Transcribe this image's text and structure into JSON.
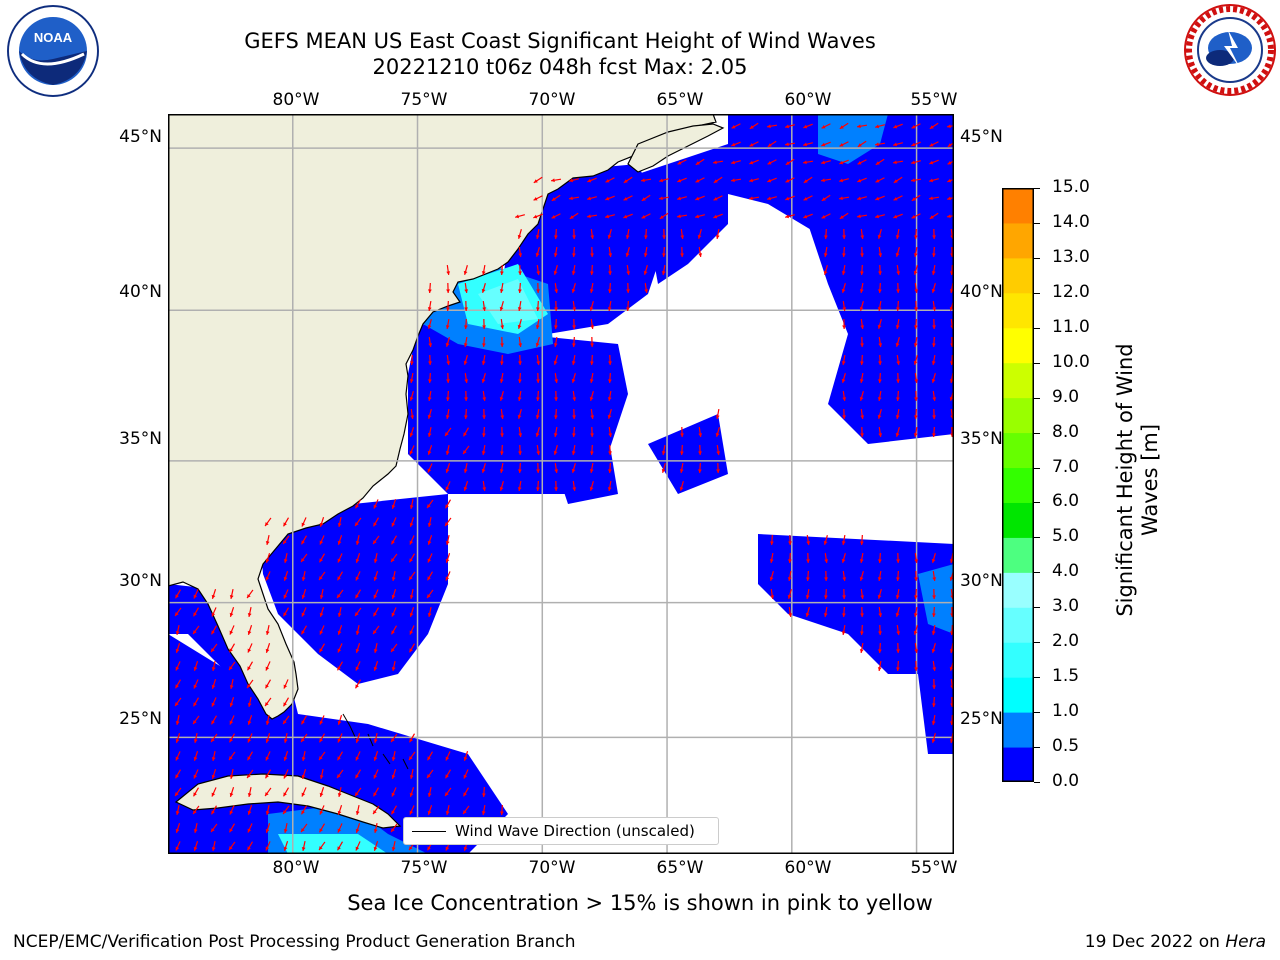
{
  "title_line1": "GEFS MEAN US East Coast Significant Height of Wind Waves",
  "title_line2": "20221210 t06z 048h fcst   Max: 2.05",
  "logos": {
    "left": "NOAA",
    "left_ring_text": "NATIONAL OCEANIC AND ATMOSPHERIC ADMINISTRATION · U.S. DEPARTMENT OF COMMERCE",
    "right_ring_text": "NATIONAL WEATHER SERVICE"
  },
  "lon_labels": [
    "80°W",
    "75°W",
    "70°W",
    "65°W",
    "60°W",
    "55°W"
  ],
  "lat_labels": [
    "45°N",
    "40°N",
    "35°N",
    "30°N",
    "25°N"
  ],
  "legend_text": "Wind Wave Direction (unscaled)",
  "note": "Sea Ice Concentration > 15% is shown in pink to yellow",
  "footer_left": "NCEP/EMC/Verification Post Processing Product Generation Branch",
  "footer_date": "19 Dec 2022 on ",
  "footer_machine": "Hera",
  "colorbar": {
    "label_line1": "Significant Height of Wind",
    "label_line2": "Waves [m]",
    "ticks": [
      "0.0",
      "0.5",
      "1.0",
      "1.5",
      "2.0",
      "3.0",
      "4.0",
      "5.0",
      "6.0",
      "7.0",
      "8.0",
      "9.0",
      "10.0",
      "11.0",
      "12.0",
      "13.0",
      "14.0",
      "15.0"
    ],
    "colors": [
      "#0000ff",
      "#0080ff",
      "#00ffff",
      "#33ffff",
      "#66ffff",
      "#99ffff",
      "#4dff80",
      "#00e600",
      "#33ff00",
      "#66ff00",
      "#99ff00",
      "#ccff00",
      "#ffff00",
      "#ffe600",
      "#ffcc00",
      "#ffa600",
      "#ff8000",
      "#ff4d00",
      "#ff0000"
    ],
    "levels": [
      0.0,
      0.5,
      1.0,
      1.5,
      2.0,
      3.0,
      4.0,
      5.0,
      6.0,
      7.0,
      8.0,
      9.0,
      10.0,
      11.0,
      12.0,
      13.0,
      14.0,
      15.0
    ]
  },
  "map": {
    "lon_range": [
      -85,
      -53.5
    ],
    "lat_range": [
      20.5,
      46
    ],
    "land_color": "#efefdc",
    "ocean_low_color": "#0000ff",
    "arrow_color": "#ff0000",
    "grid_color": "#b0b0b0"
  }
}
